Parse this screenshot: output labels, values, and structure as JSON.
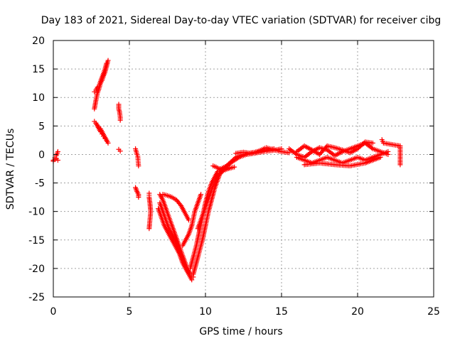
{
  "chart_data": {
    "type": "scatter",
    "title": "Day 183 of 2021, Sidereal Day-to-day VTEC variation (SDTVAR) for receiver cibg",
    "xlabel": "GPS time / hours",
    "ylabel": "SDTVAR / TECUs",
    "xlim": [
      0,
      25
    ],
    "ylim": [
      -25,
      20
    ],
    "xticks": [
      0,
      5,
      10,
      15,
      20,
      25
    ],
    "yticks": [
      -25,
      -20,
      -15,
      -10,
      -5,
      0,
      5,
      10,
      15,
      20
    ],
    "xtick_labels": [
      "0",
      "5",
      "10",
      "15",
      "20",
      "25"
    ],
    "ytick_labels": [
      "-25",
      "-20",
      "-15",
      "-10",
      "-5",
      "0",
      "5",
      "10",
      "15",
      "20"
    ],
    "grid": true,
    "marker": "+",
    "color": "#ff0000",
    "series": [
      {
        "name": "SDTVAR",
        "segments": [
          {
            "x": [
              0.0,
              0.1,
              0.2,
              0.3
            ],
            "y": [
              -1.0,
              -0.6,
              -0.2,
              0.5
            ]
          },
          {
            "x": [
              0.0,
              0.1,
              0.2,
              0.3
            ],
            "y": [
              -1.2,
              -0.9,
              -0.7,
              -1.0
            ]
          },
          {
            "x": [
              2.7,
              2.8,
              2.9,
              3.0,
              3.1,
              3.2,
              3.3,
              3.4,
              3.5,
              3.6
            ],
            "y": [
              8.0,
              9.5,
              10.8,
              11.5,
              12.5,
              13.0,
              13.8,
              14.5,
              15.5,
              16.5
            ]
          },
          {
            "x": [
              2.7,
              2.8,
              2.9,
              3.0,
              3.1,
              3.2,
              3.3,
              3.4,
              3.5
            ],
            "y": [
              11.0,
              11.3,
              11.8,
              12.0,
              12.8,
              13.5,
              14.2,
              15.0,
              16.0
            ]
          },
          {
            "x": [
              2.7,
              2.8,
              2.9,
              3.0,
              3.1,
              3.2,
              3.3,
              3.4,
              3.5,
              3.6
            ],
            "y": [
              5.8,
              5.5,
              5.0,
              4.8,
              4.5,
              4.0,
              3.5,
              3.0,
              2.5,
              2.0
            ]
          },
          {
            "x": [
              2.8,
              2.9,
              3.0,
              3.1,
              3.2,
              3.3,
              3.4,
              3.5
            ],
            "y": [
              5.5,
              5.0,
              4.5,
              4.0,
              3.6,
              3.2,
              2.8,
              2.5
            ]
          },
          {
            "x": [
              4.3,
              4.3,
              4.35,
              4.4,
              4.4
            ],
            "y": [
              8.8,
              8.0,
              7.5,
              6.5,
              6.0
            ]
          },
          {
            "x": [
              4.3,
              4.4
            ],
            "y": [
              0.9,
              0.6
            ]
          },
          {
            "x": [
              5.4,
              5.45,
              5.5,
              5.55,
              5.6
            ],
            "y": [
              1.0,
              0.5,
              0.0,
              -0.3,
              -2.0
            ]
          },
          {
            "x": [
              5.4,
              5.5,
              5.6,
              5.6
            ],
            "y": [
              -5.8,
              -6.5,
              -7.0,
              -7.5
            ]
          },
          {
            "x": [
              6.3,
              6.3,
              6.35,
              6.4,
              6.3
            ],
            "y": [
              -6.8,
              -7.5,
              -8.5,
              -10.0,
              -13.0
            ]
          },
          {
            "x": [
              7.0,
              7.2,
              7.4,
              7.6,
              7.8,
              8.0,
              8.2,
              8.4,
              8.6,
              8.8,
              9.0,
              9.2
            ],
            "y": [
              -7.0,
              -8.0,
              -9.5,
              -11.0,
              -12.5,
              -14.0,
              -15.5,
              -17.0,
              -18.5,
              -20.0,
              -21.0,
              -21.5
            ]
          },
          {
            "x": [
              7.0,
              7.2,
              7.4,
              7.6,
              7.8,
              8.0,
              8.2,
              8.4,
              8.6,
              8.8,
              9.0
            ],
            "y": [
              -8.5,
              -10.0,
              -11.5,
              -13.0,
              -14.0,
              -15.0,
              -16.5,
              -18.0,
              -19.5,
              -20.5,
              -21.0
            ]
          },
          {
            "x": [
              6.9,
              7.1,
              7.3,
              7.5,
              7.7,
              7.9,
              8.1,
              8.3,
              8.5,
              8.7,
              8.9,
              9.1
            ],
            "y": [
              -9.5,
              -11.0,
              -12.5,
              -13.5,
              -14.5,
              -15.5,
              -16.5,
              -17.5,
              -19.0,
              -20.0,
              -21.0,
              -22.0
            ]
          },
          {
            "x": [
              7.2,
              7.5,
              7.8,
              8.1,
              8.4,
              8.7,
              8.9
            ],
            "y": [
              -7.0,
              -7.2,
              -7.5,
              -8.0,
              -9.0,
              -10.5,
              -11.5
            ]
          },
          {
            "x": [
              8.5,
              8.7,
              8.9,
              9.1,
              9.3,
              9.5,
              9.7
            ],
            "y": [
              -16.0,
              -15.0,
              -14.0,
              -12.5,
              -10.0,
              -8.5,
              -7.0
            ]
          },
          {
            "x": [
              9.2,
              9.4,
              9.6,
              9.8,
              10.0,
              10.2,
              10.4,
              10.6,
              10.8,
              11.0,
              11.3,
              11.6,
              12.0,
              12.5,
              13.0,
              13.5,
              14.0,
              14.5
            ],
            "y": [
              -21.0,
              -19.0,
              -17.0,
              -15.0,
              -12.5,
              -10.0,
              -8.0,
              -6.0,
              -4.5,
              -3.0,
              -2.2,
              -1.5,
              -0.5,
              0.0,
              0.3,
              0.5,
              0.8,
              1.0
            ]
          },
          {
            "x": [
              9.0,
              9.2,
              9.4,
              9.6,
              9.8,
              10.0,
              10.2,
              10.4,
              10.6,
              10.8,
              11.0,
              11.4,
              11.8,
              12.2,
              12.7,
              13.2,
              13.8,
              14.4,
              15.0
            ],
            "y": [
              -20.0,
              -18.0,
              -16.0,
              -13.5,
              -11.0,
              -8.5,
              -6.5,
              -5.0,
              -4.0,
              -3.0,
              -2.5,
              -2.0,
              -1.2,
              -0.5,
              0.0,
              0.2,
              0.5,
              0.7,
              1.0
            ]
          },
          {
            "x": [
              9.5,
              9.7,
              9.9,
              10.1,
              10.3,
              10.5,
              10.7,
              10.9,
              11.2,
              11.5,
              11.9
            ],
            "y": [
              -13.0,
              -11.5,
              -10.0,
              -8.5,
              -7.0,
              -5.5,
              -4.5,
              -3.5,
              -2.8,
              -2.5,
              -2.2
            ]
          },
          {
            "x": [
              10.5,
              10.7,
              10.9,
              11.1,
              11.3,
              11.6
            ],
            "y": [
              -2.0,
              -2.2,
              -2.5,
              -2.7,
              -2.5,
              -2.3
            ]
          },
          {
            "x": [
              12.0,
              12.5,
              13.0,
              13.5,
              14.0,
              14.5,
              15.0,
              15.5
            ],
            "y": [
              0.2,
              0.4,
              0.2,
              0.6,
              1.2,
              0.8,
              0.5,
              0.3
            ]
          },
          {
            "x": [
              15.5,
              16.0,
              16.5,
              17.0,
              17.5,
              18.0,
              18.5,
              19.0,
              19.5,
              20.0,
              20.5,
              21.0,
              21.5,
              22.0
            ],
            "y": [
              1.0,
              0.0,
              -0.5,
              0.5,
              1.2,
              0.8,
              -0.2,
              0.5,
              1.0,
              1.5,
              2.0,
              1.0,
              0.5,
              0.0
            ]
          },
          {
            "x": [
              16.0,
              16.5,
              17.0,
              17.5,
              18.0,
              18.5,
              19.0,
              19.5,
              20.0,
              20.5,
              21.0,
              21.5,
              22.0
            ],
            "y": [
              -0.5,
              -1.0,
              -1.5,
              -1.0,
              -0.5,
              -1.0,
              -1.5,
              -1.0,
              -0.5,
              -1.0,
              -0.5,
              0.0,
              0.5
            ]
          },
          {
            "x": [
              16.0,
              16.5,
              17.0,
              17.5,
              18.0,
              18.5,
              19.0,
              19.5,
              20.0,
              20.5,
              21.0
            ],
            "y": [
              0.5,
              1.5,
              0.8,
              0.0,
              1.5,
              1.2,
              0.8,
              0.3,
              1.0,
              2.2,
              2.0
            ]
          },
          {
            "x": [
              16.5,
              17.5,
              18.5,
              19.5,
              20.5,
              21.5
            ],
            "y": [
              -1.8,
              -1.5,
              -1.8,
              -2.0,
              -1.5,
              -0.5
            ]
          },
          {
            "x": [
              21.6,
              21.7,
              22.8,
              22.8,
              22.8
            ],
            "y": [
              2.6,
              2.0,
              1.5,
              -1.0,
              -1.8
            ]
          }
        ]
      }
    ]
  }
}
